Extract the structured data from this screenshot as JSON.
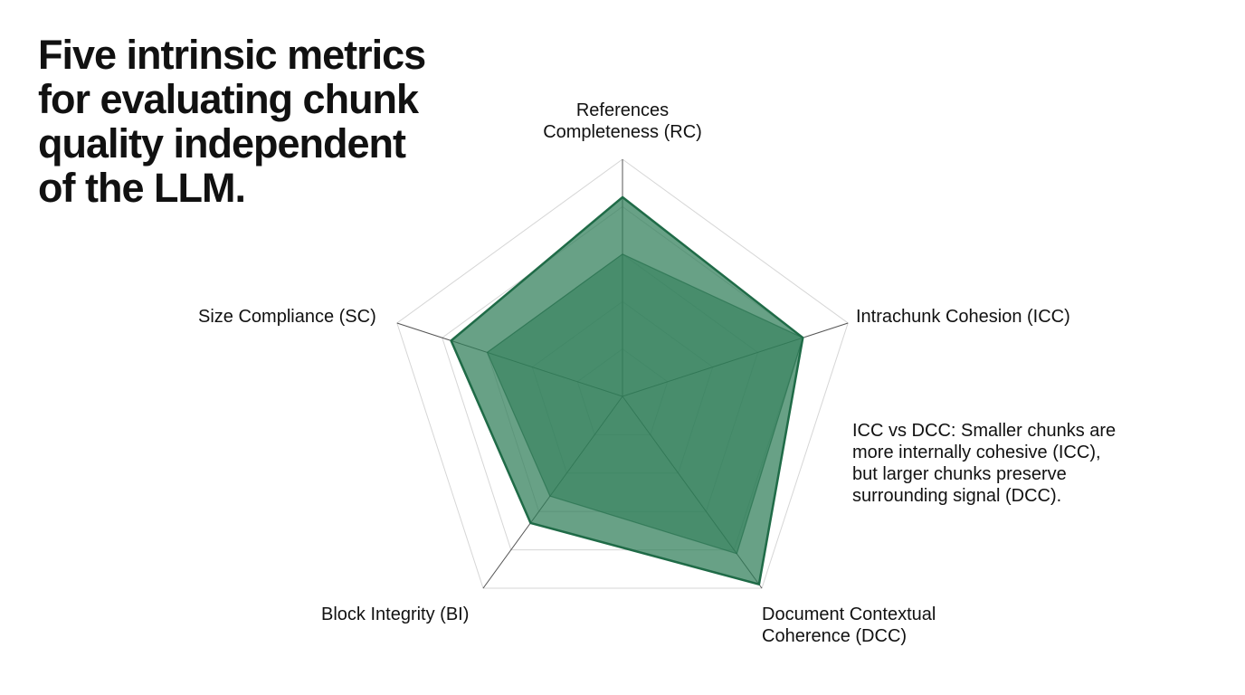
{
  "title": {
    "lines": [
      "Five intrinsic metrics",
      "for evaluating chunk",
      "quality independent",
      "of the LLM."
    ]
  },
  "axes": {
    "rc": {
      "lines": [
        "References",
        "Completeness (RC)"
      ]
    },
    "icc": {
      "lines": [
        "Intrachunk Cohesion (ICC)"
      ]
    },
    "dcc": {
      "lines": [
        "Document Contextual",
        "Coherence (DCC)"
      ]
    },
    "bi": {
      "lines": [
        "Block Integrity (BI)"
      ]
    },
    "sc": {
      "lines": [
        "Size Compliance (SC)"
      ]
    }
  },
  "annotation": {
    "lines": [
      "ICC vs DCC: Smaller chunks are",
      "more internally cohesive (ICC),",
      "but larger chunks preserve",
      "surrounding signal (DCC)."
    ]
  },
  "colors": {
    "fill": "#2e7d57",
    "stroke": "#1f6b47",
    "grid": "#d6d6d6",
    "axis": "#555555"
  },
  "chart_data": {
    "type": "radar",
    "axes": [
      "References Completeness (RC)",
      "Intrachunk Cohesion (ICC)",
      "Document Contextual Coherence (DCC)",
      "Block Integrity (BI)",
      "Size Compliance (SC)"
    ],
    "range": [
      0,
      1
    ],
    "grid": true,
    "series": [
      {
        "values": [
          0.84,
          0.8,
          0.98,
          0.66,
          0.76
        ]
      },
      {
        "values": [
          0.6,
          0.8,
          0.82,
          0.52,
          0.6
        ]
      }
    ]
  }
}
